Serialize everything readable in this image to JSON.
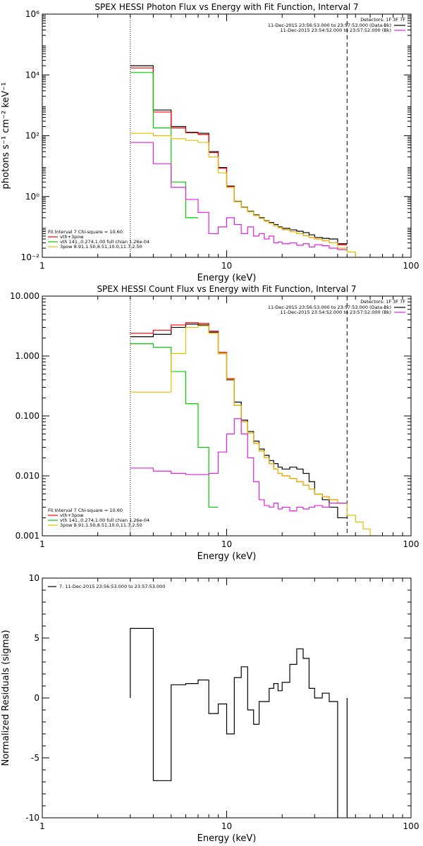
{
  "chart_data": [
    {
      "type": "line",
      "title": "SPEX HESSI Photon Flux vs Energy with Fit Function, Interval 7",
      "xlabel": "Energy (keV)",
      "ylabel": "photons s⁻¹ cm⁻² keV⁻¹",
      "xscale": "log",
      "yscale": "log",
      "xlim": [
        1,
        100
      ],
      "ylim": [
        0.01,
        1000000
      ],
      "xticks": [
        {
          "value": 1,
          "label": "1"
        },
        {
          "value": 10,
          "label": "10"
        },
        {
          "value": 100,
          "label": "100"
        }
      ],
      "yticks": [
        {
          "value": 0.01,
          "label": "10⁻²"
        },
        {
          "value": 1,
          "label": "10⁰"
        },
        {
          "value": 100,
          "label": "10²"
        },
        {
          "value": 10000,
          "label": "10⁴"
        },
        {
          "value": 1000000,
          "label": "10⁶"
        }
      ],
      "vlines": [
        {
          "x": 3.0,
          "style": "dotted",
          "color": "#000000"
        },
        {
          "x": 45.0,
          "style": "dashed",
          "color": "#000000"
        }
      ],
      "legend_top": {
        "header": "Detectors: 1F 3F 7F",
        "entries": [
          {
            "label": "11-Dec-2015 23:56:53.000 to 23:57:53.000 (Data-Bk)",
            "color": "#000000"
          },
          {
            "label": "11-Dec-2015 23:54:52.000 to 23:57:52.000 (Bk)",
            "color": "#e020e0"
          }
        ]
      },
      "legend_bottom": {
        "header": "Fit Interval 7   Chi-square = 10.60",
        "entries": [
          {
            "label": "vth+3pow",
            "color": "#ff0000"
          },
          {
            "label": "vth 141.,0.274,1.00  full chian 1.26e-04",
            "color": "#00cc00"
          },
          {
            "label": "3pow 8.91,1.50,8.51,10.0,11.7,2.50",
            "color": "#e0c000"
          }
        ]
      },
      "series": [
        {
          "name": "11-Dec-2015 23:56:53.000 to 23:57:53.000 (Data-Bk)",
          "color": "#000000",
          "edges": [
            3,
            4,
            5,
            6,
            7,
            8,
            9,
            10,
            11,
            12,
            13,
            14,
            15,
            16,
            17,
            18,
            19,
            20,
            22,
            24,
            26,
            28,
            30,
            33,
            36,
            40,
            45
          ],
          "values": [
            20000,
            700,
            200,
            130,
            120,
            30,
            9,
            2.2,
            0.7,
            0.45,
            0.33,
            0.25,
            0.2,
            0.16,
            0.14,
            0.12,
            0.1,
            0.09,
            0.08,
            0.072,
            0.065,
            0.055,
            0.045,
            0.042,
            0.04,
            0.028
          ]
        },
        {
          "name": "vth+3pow",
          "color": "#ff0000",
          "edges": [
            3,
            4,
            5,
            6,
            7,
            8,
            9,
            10,
            11,
            12,
            13,
            14,
            15,
            16,
            17,
            18,
            19,
            20,
            22,
            24,
            26,
            28,
            30,
            33,
            36,
            40,
            45
          ],
          "values": [
            17000,
            600,
            180,
            125,
            110,
            28,
            8.5,
            2.1,
            0.68,
            0.44,
            0.32,
            0.24,
            0.19,
            0.155,
            0.13,
            0.11,
            0.095,
            0.082,
            0.07,
            0.06,
            0.052,
            0.045,
            0.04,
            0.035,
            0.03,
            0.026
          ]
        },
        {
          "name": "vth 141.,0.274,1.00  full chian 1.26e-04",
          "color": "#00cc00",
          "edges": [
            3,
            4,
            5,
            6,
            7
          ],
          "values": [
            12000,
            180,
            3,
            0.2
          ]
        },
        {
          "name": "3pow 8.91,1.50,8.51,10.0,11.7,2.50",
          "color": "#e0c000",
          "edges": [
            3,
            4,
            5,
            6,
            7,
            8,
            9,
            10,
            11,
            12,
            13,
            14,
            15,
            16,
            17,
            18,
            19,
            20,
            22,
            24,
            26,
            28,
            30,
            33,
            36,
            40,
            45,
            50,
            55
          ],
          "values": [
            120,
            100,
            80,
            70,
            60,
            20,
            6,
            2,
            0.68,
            0.44,
            0.32,
            0.24,
            0.19,
            0.155,
            0.13,
            0.11,
            0.095,
            0.082,
            0.07,
            0.06,
            0.052,
            0.045,
            0.04,
            0.035,
            0.03,
            0.02,
            0.015,
            0.01
          ]
        },
        {
          "name": "11-Dec-2015 23:54:52.000 to 23:57:52.000 (Bk)",
          "color": "#e020e0",
          "edges": [
            3,
            4,
            5,
            6,
            7,
            8,
            9,
            10,
            11,
            12,
            13,
            14,
            15,
            16,
            17,
            18,
            19,
            20,
            22,
            24,
            26,
            28,
            30,
            33,
            36,
            40,
            45
          ],
          "values": [
            60,
            12,
            2,
            0.8,
            0.3,
            0.06,
            0.1,
            0.2,
            0.12,
            0.06,
            0.1,
            0.05,
            0.06,
            0.04,
            0.05,
            0.03,
            0.032,
            0.028,
            0.03,
            0.025,
            0.028,
            0.022,
            0.026,
            0.024,
            0.02,
            0.018
          ]
        }
      ]
    },
    {
      "type": "line",
      "title": "SPEX HESSI Count Flux vs Energy with Fit Function, Interval 7",
      "xlabel": "Energy (keV)",
      "ylabel": "",
      "xscale": "log",
      "yscale": "log",
      "xlim": [
        1,
        100
      ],
      "ylim": [
        0.001,
        10
      ],
      "xticks": [
        {
          "value": 1,
          "label": "1"
        },
        {
          "value": 10,
          "label": "10"
        },
        {
          "value": 100,
          "label": "100"
        }
      ],
      "yticks": [
        {
          "value": 0.001,
          "label": "0.001"
        },
        {
          "value": 0.01,
          "label": "0.010"
        },
        {
          "value": 0.1,
          "label": "0.100"
        },
        {
          "value": 1,
          "label": "1.000"
        },
        {
          "value": 10,
          "label": "10.000"
        }
      ],
      "vlines": [
        {
          "x": 3.0,
          "style": "dotted",
          "color": "#000000"
        },
        {
          "x": 45.0,
          "style": "dashed",
          "color": "#000000"
        }
      ],
      "legend_top": {
        "header": "Detectors: 1F 3F 7F",
        "entries": [
          {
            "label": "11-Dec-2015 23:56:53.000 to 23:57:53.000 (Data-Bk)",
            "color": "#000000"
          },
          {
            "label": "11-Dec-2015 23:54:52.000 to 23:57:52.000 (Bk)",
            "color": "#e020e0"
          }
        ]
      },
      "legend_bottom": {
        "header": "Fit Interval 7   Chi-square = 10.60",
        "entries": [
          {
            "label": "vth+3pow",
            "color": "#ff0000"
          },
          {
            "label": "vth 141.,0.274,1.00  full chian 1.26e-04",
            "color": "#00cc00"
          },
          {
            "label": "3pow 8.91,1.50,8.51,10.0,11.7,2.50",
            "color": "#e0c000"
          }
        ]
      },
      "series": [
        {
          "name": "11-Dec-2015 23:56:53.000 to 23:57:53.000 (Data-Bk)",
          "color": "#000000",
          "edges": [
            3,
            4,
            5,
            6,
            7,
            8,
            9,
            10,
            11,
            12,
            13,
            14,
            15,
            16,
            17,
            18,
            19,
            20,
            22,
            24,
            26,
            28,
            30,
            33,
            36,
            40,
            45
          ],
          "values": [
            2.1,
            2.3,
            3.0,
            3.4,
            3.3,
            2.5,
            1.1,
            0.4,
            0.17,
            0.085,
            0.055,
            0.038,
            0.028,
            0.022,
            0.018,
            0.016,
            0.014,
            0.013,
            0.014,
            0.013,
            0.011,
            0.008,
            0.005,
            0.004,
            0.003,
            0.002
          ]
        },
        {
          "name": "vth+3pow",
          "color": "#ff0000",
          "edges": [
            3,
            4,
            5,
            6,
            7,
            8,
            9,
            10,
            11,
            12,
            13,
            14,
            15,
            16,
            17,
            18,
            19,
            20,
            22,
            24,
            26,
            28,
            30,
            33,
            36,
            40,
            45
          ],
          "values": [
            2.4,
            2.7,
            3.3,
            3.6,
            3.5,
            2.6,
            1.15,
            0.42,
            0.15,
            0.08,
            0.052,
            0.035,
            0.026,
            0.02,
            0.016,
            0.013,
            0.011,
            0.01,
            0.009,
            0.008,
            0.007,
            0.006,
            0.005,
            0.0045,
            0.004,
            0.0035
          ]
        },
        {
          "name": "vth 141.,0.274,1.00  full chian 1.26e-04",
          "color": "#00cc00",
          "edges": [
            3,
            4,
            5,
            6,
            7,
            8,
            9
          ],
          "values": [
            1.6,
            1.4,
            0.55,
            0.16,
            0.03,
            0.003
          ]
        },
        {
          "name": "3pow 8.91,1.50,8.51,10.0,11.7,2.50",
          "color": "#e0c000",
          "edges": [
            3,
            4,
            5,
            6,
            7,
            8,
            9,
            10,
            11,
            12,
            13,
            14,
            15,
            16,
            17,
            18,
            19,
            20,
            22,
            24,
            26,
            28,
            30,
            33,
            36,
            40,
            45,
            50,
            55,
            60,
            65
          ],
          "values": [
            0.25,
            0.25,
            1.1,
            3.0,
            3.2,
            2.4,
            1.1,
            0.41,
            0.15,
            0.08,
            0.052,
            0.035,
            0.026,
            0.02,
            0.016,
            0.013,
            0.011,
            0.01,
            0.009,
            0.008,
            0.007,
            0.006,
            0.005,
            0.0045,
            0.004,
            0.0035,
            0.0022,
            0.0017,
            0.0013,
            0.001
          ]
        },
        {
          "name": "11-Dec-2015 23:54:52.000 to 23:57:52.000 (Bk)",
          "color": "#e020e0",
          "edges": [
            3,
            4,
            5,
            6,
            7,
            8,
            9,
            10,
            11,
            12,
            13,
            14,
            15,
            16,
            17,
            18,
            19,
            20,
            22,
            24,
            26,
            28,
            30,
            33,
            36,
            40,
            45
          ],
          "values": [
            0.0135,
            0.012,
            0.011,
            0.0105,
            0.0105,
            0.011,
            0.025,
            0.05,
            0.09,
            0.05,
            0.02,
            0.008,
            0.004,
            0.0032,
            0.003,
            0.0035,
            0.0028,
            0.003,
            0.0026,
            0.003,
            0.0028,
            0.003,
            0.0032,
            0.003,
            0.0035,
            0.0035
          ]
        }
      ]
    },
    {
      "type": "line",
      "title": "",
      "xlabel": "Energy (keV)",
      "ylabel": "Normalized Residuals (sigma)",
      "xscale": "log",
      "yscale": "linear",
      "xlim": [
        1,
        100
      ],
      "ylim": [
        -10,
        10
      ],
      "xticks": [
        {
          "value": 1,
          "label": "1"
        },
        {
          "value": 10,
          "label": "10"
        },
        {
          "value": 100,
          "label": "100"
        }
      ],
      "yticks": [
        {
          "value": -10,
          "label": "-10"
        },
        {
          "value": -5,
          "label": "-5"
        },
        {
          "value": 0,
          "label": "0"
        },
        {
          "value": 5,
          "label": "5"
        },
        {
          "value": 10,
          "label": "10"
        }
      ],
      "vlines": [],
      "legend_top": {
        "header": "",
        "entries": [
          {
            "label": "7. 11-Dec-2015 23:56:53.000 to 23:57:53.000",
            "color": "#000000"
          }
        ]
      },
      "legend_bottom": {
        "header": "",
        "entries": []
      },
      "series": [
        {
          "name": "7. 11-Dec-2015 23:56:53.000 to 23:57:53.000",
          "color": "#000000",
          "edges": [
            3,
            4,
            5,
            6,
            7,
            8,
            9,
            10,
            11,
            12,
            13,
            14,
            15,
            16,
            17,
            18,
            19,
            20,
            22,
            24,
            26,
            28,
            30,
            33,
            36,
            40,
            45
          ],
          "values": [
            5.8,
            -6.9,
            1.1,
            1.2,
            1.5,
            -1.3,
            -0.5,
            -3.0,
            1.7,
            2.6,
            -1.0,
            -2.2,
            -0.3,
            -0.3,
            0.8,
            1.2,
            0.6,
            1.3,
            2.8,
            4.1,
            3.3,
            0.8,
            0.0,
            0.4,
            -0.3,
            -10.2
          ],
          "closed": true
        }
      ]
    }
  ]
}
